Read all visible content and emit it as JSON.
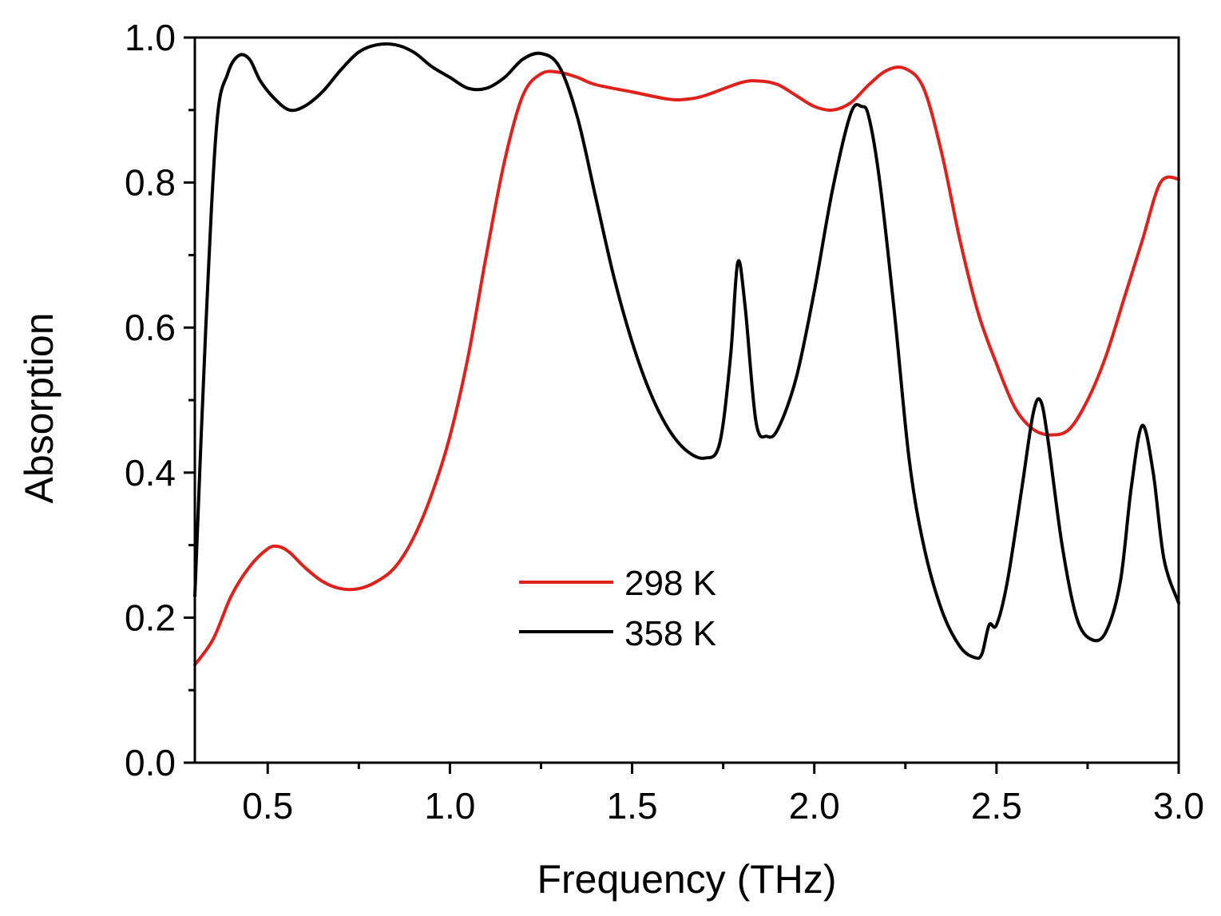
{
  "chart_data": {
    "type": "line",
    "title": "",
    "xlabel": "Frequency (THz)",
    "ylabel": "Absorption",
    "xlim": [
      0.3,
      3.0
    ],
    "ylim": [
      0.0,
      1.0
    ],
    "x_ticks": [
      {
        "value": 0.5,
        "label": "0.5"
      },
      {
        "value": 1.0,
        "label": "1.0"
      },
      {
        "value": 1.5,
        "label": "1.5"
      },
      {
        "value": 2.0,
        "label": "2.0"
      },
      {
        "value": 2.5,
        "label": "2.5"
      },
      {
        "value": 3.0,
        "label": "3.0"
      }
    ],
    "x_minor_ticks": [
      0.75,
      1.25,
      1.75,
      2.25,
      2.75
    ],
    "y_ticks": [
      {
        "value": 0.0,
        "label": "0.0"
      },
      {
        "value": 0.2,
        "label": "0.2"
      },
      {
        "value": 0.4,
        "label": "0.4"
      },
      {
        "value": 0.6,
        "label": "0.6"
      },
      {
        "value": 0.8,
        "label": "0.8"
      },
      {
        "value": 1.0,
        "label": "1.0"
      }
    ],
    "y_minor_ticks": [
      0.1,
      0.3,
      0.5,
      0.7,
      0.9
    ],
    "grid": false,
    "legend_position": "center",
    "series": [
      {
        "name": "298 K",
        "color": "#e0201b",
        "points": [
          [
            0.3,
            0.135
          ],
          [
            0.35,
            0.17
          ],
          [
            0.4,
            0.23
          ],
          [
            0.45,
            0.27
          ],
          [
            0.5,
            0.295
          ],
          [
            0.53,
            0.298
          ],
          [
            0.56,
            0.29
          ],
          [
            0.6,
            0.27
          ],
          [
            0.65,
            0.25
          ],
          [
            0.7,
            0.24
          ],
          [
            0.75,
            0.24
          ],
          [
            0.8,
            0.25
          ],
          [
            0.85,
            0.27
          ],
          [
            0.9,
            0.31
          ],
          [
            0.95,
            0.37
          ],
          [
            1.0,
            0.45
          ],
          [
            1.05,
            0.56
          ],
          [
            1.1,
            0.7
          ],
          [
            1.15,
            0.83
          ],
          [
            1.2,
            0.92
          ],
          [
            1.25,
            0.95
          ],
          [
            1.3,
            0.952
          ],
          [
            1.35,
            0.945
          ],
          [
            1.4,
            0.935
          ],
          [
            1.5,
            0.925
          ],
          [
            1.6,
            0.915
          ],
          [
            1.65,
            0.915
          ],
          [
            1.7,
            0.92
          ],
          [
            1.8,
            0.938
          ],
          [
            1.85,
            0.94
          ],
          [
            1.9,
            0.935
          ],
          [
            1.95,
            0.92
          ],
          [
            2.0,
            0.905
          ],
          [
            2.05,
            0.9
          ],
          [
            2.1,
            0.91
          ],
          [
            2.15,
            0.935
          ],
          [
            2.2,
            0.955
          ],
          [
            2.25,
            0.957
          ],
          [
            2.3,
            0.93
          ],
          [
            2.35,
            0.84
          ],
          [
            2.4,
            0.72
          ],
          [
            2.45,
            0.62
          ],
          [
            2.5,
            0.55
          ],
          [
            2.55,
            0.49
          ],
          [
            2.6,
            0.46
          ],
          [
            2.65,
            0.452
          ],
          [
            2.7,
            0.46
          ],
          [
            2.75,
            0.5
          ],
          [
            2.8,
            0.56
          ],
          [
            2.85,
            0.64
          ],
          [
            2.9,
            0.72
          ],
          [
            2.95,
            0.8
          ],
          [
            3.0,
            0.805
          ]
        ]
      },
      {
        "name": "358 K",
        "color": "#000000",
        "points": [
          [
            0.3,
            0.23
          ],
          [
            0.33,
            0.6
          ],
          [
            0.36,
            0.88
          ],
          [
            0.39,
            0.95
          ],
          [
            0.42,
            0.975
          ],
          [
            0.45,
            0.97
          ],
          [
            0.48,
            0.94
          ],
          [
            0.52,
            0.915
          ],
          [
            0.56,
            0.9
          ],
          [
            0.6,
            0.905
          ],
          [
            0.65,
            0.925
          ],
          [
            0.7,
            0.955
          ],
          [
            0.75,
            0.98
          ],
          [
            0.8,
            0.99
          ],
          [
            0.85,
            0.99
          ],
          [
            0.9,
            0.98
          ],
          [
            0.95,
            0.96
          ],
          [
            1.0,
            0.945
          ],
          [
            1.05,
            0.93
          ],
          [
            1.1,
            0.93
          ],
          [
            1.15,
            0.945
          ],
          [
            1.2,
            0.97
          ],
          [
            1.25,
            0.978
          ],
          [
            1.3,
            0.96
          ],
          [
            1.35,
            0.89
          ],
          [
            1.4,
            0.78
          ],
          [
            1.45,
            0.67
          ],
          [
            1.5,
            0.58
          ],
          [
            1.55,
            0.51
          ],
          [
            1.6,
            0.46
          ],
          [
            1.65,
            0.43
          ],
          [
            1.7,
            0.42
          ],
          [
            1.74,
            0.44
          ],
          [
            1.77,
            0.56
          ],
          [
            1.79,
            0.69
          ],
          [
            1.81,
            0.63
          ],
          [
            1.84,
            0.47
          ],
          [
            1.87,
            0.45
          ],
          [
            1.9,
            0.46
          ],
          [
            1.95,
            0.53
          ],
          [
            2.0,
            0.65
          ],
          [
            2.05,
            0.79
          ],
          [
            2.1,
            0.895
          ],
          [
            2.13,
            0.905
          ],
          [
            2.15,
            0.89
          ],
          [
            2.18,
            0.8
          ],
          [
            2.22,
            0.62
          ],
          [
            2.26,
            0.42
          ],
          [
            2.3,
            0.3
          ],
          [
            2.35,
            0.21
          ],
          [
            2.4,
            0.16
          ],
          [
            2.44,
            0.145
          ],
          [
            2.46,
            0.15
          ],
          [
            2.48,
            0.19
          ],
          [
            2.5,
            0.19
          ],
          [
            2.53,
            0.25
          ],
          [
            2.57,
            0.38
          ],
          [
            2.6,
            0.48
          ],
          [
            2.62,
            0.5
          ],
          [
            2.64,
            0.45
          ],
          [
            2.68,
            0.3
          ],
          [
            2.72,
            0.2
          ],
          [
            2.76,
            0.17
          ],
          [
            2.8,
            0.18
          ],
          [
            2.84,
            0.25
          ],
          [
            2.87,
            0.38
          ],
          [
            2.9,
            0.465
          ],
          [
            2.93,
            0.4
          ],
          [
            2.96,
            0.28
          ],
          [
            3.0,
            0.22
          ]
        ]
      }
    ]
  }
}
